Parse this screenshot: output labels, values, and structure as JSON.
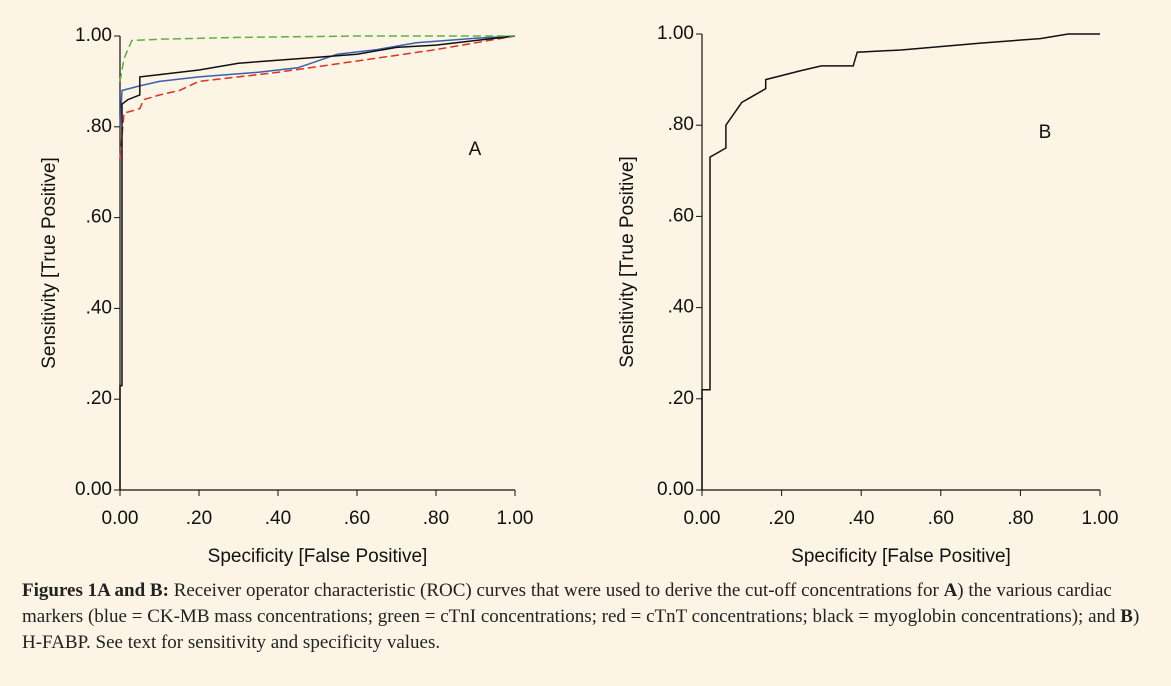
{
  "chart_data": [
    {
      "type": "line",
      "panel_label": "A",
      "xlabel": "Specificity [False Positive]",
      "ylabel": "Sensitivity [True Positive]",
      "xlim": [
        0,
        1
      ],
      "ylim": [
        0,
        1
      ],
      "xticks": [
        {
          "value": 0,
          "label": "0.00"
        },
        {
          "value": 0.2,
          "label": ".20"
        },
        {
          "value": 0.4,
          "label": ".40"
        },
        {
          "value": 0.6,
          "label": ".60"
        },
        {
          "value": 0.8,
          "label": ".80"
        },
        {
          "value": 1,
          "label": "1.00"
        }
      ],
      "yticks": [
        {
          "value": 0,
          "label": "0.00"
        },
        {
          "value": 0.2,
          "label": ".20"
        },
        {
          "value": 0.4,
          "label": ".40"
        },
        {
          "value": 0.6,
          "label": ".60"
        },
        {
          "value": 0.8,
          "label": ".80"
        },
        {
          "value": 1,
          "label": "1.00"
        }
      ],
      "series": [
        {
          "color": "#e03020",
          "dash": true,
          "x": [
            0,
            0.01,
            0.05,
            0.06,
            0.1,
            0.15,
            0.2,
            0.4,
            0.6,
            0.8,
            1
          ],
          "values": [
            0.73,
            0.83,
            0.84,
            0.86,
            0.87,
            0.88,
            0.9,
            0.92,
            0.945,
            0.97,
            1
          ]
        },
        {
          "color": "#3a5fb0",
          "dash": false,
          "x": [
            0,
            0.005,
            0.05,
            0.1,
            0.2,
            0.35,
            0.45,
            0.55,
            0.65,
            0.75,
            0.9,
            1
          ],
          "values": [
            0.8,
            0.88,
            0.89,
            0.9,
            0.91,
            0.92,
            0.93,
            0.96,
            0.97,
            0.985,
            0.995,
            1
          ]
        },
        {
          "color": "#111111",
          "dash": false,
          "x": [
            0,
            0,
            0.005,
            0.005,
            0.02,
            0.05,
            0.05,
            0.1,
            0.2,
            0.3,
            0.45,
            0.6,
            0.7,
            0.8,
            0.9,
            1
          ],
          "values": [
            0,
            0.23,
            0.23,
            0.85,
            0.86,
            0.87,
            0.91,
            0.915,
            0.925,
            0.94,
            0.95,
            0.96,
            0.975,
            0.98,
            0.99,
            1
          ]
        },
        {
          "color": "#5cb040",
          "dash": true,
          "x": [
            0,
            0.01,
            0.02,
            0.03,
            0.1,
            0.3,
            0.6,
            1
          ],
          "values": [
            0.9,
            0.95,
            0.97,
            0.99,
            0.993,
            0.997,
            1,
            1
          ]
        }
      ]
    },
    {
      "type": "line",
      "panel_label": "B",
      "xlabel": "Specificity [False Positive]",
      "ylabel": "Sensitivity [True Positive]",
      "xlim": [
        0,
        1
      ],
      "ylim": [
        0,
        1
      ],
      "xticks": [
        {
          "value": 0,
          "label": "0.00"
        },
        {
          "value": 0.2,
          "label": ".20"
        },
        {
          "value": 0.4,
          "label": ".40"
        },
        {
          "value": 0.6,
          "label": ".60"
        },
        {
          "value": 0.8,
          "label": ".80"
        },
        {
          "value": 1,
          "label": "1.00"
        }
      ],
      "yticks": [
        {
          "value": 0,
          "label": "0.00"
        },
        {
          "value": 0.2,
          "label": ".20"
        },
        {
          "value": 0.4,
          "label": ".40"
        },
        {
          "value": 0.6,
          "label": ".60"
        },
        {
          "value": 0.8,
          "label": ".80"
        },
        {
          "value": 1,
          "label": "1.00"
        }
      ],
      "series": [
        {
          "color": "#111111",
          "dash": false,
          "x": [
            0,
            0,
            0.02,
            0.02,
            0.04,
            0.06,
            0.06,
            0.1,
            0.12,
            0.16,
            0.16,
            0.25,
            0.3,
            0.38,
            0.39,
            0.5,
            0.7,
            0.85,
            0.92,
            1
          ],
          "values": [
            0,
            0.22,
            0.22,
            0.73,
            0.74,
            0.75,
            0.8,
            0.85,
            0.86,
            0.88,
            0.9,
            0.92,
            0.93,
            0.93,
            0.96,
            0.965,
            0.98,
            0.99,
            1,
            1
          ]
        }
      ]
    }
  ],
  "caption": [
    "Figures 1A and B:",
    " Receiver operator characteristic (ROC) curves that were used to derive the cut-off concentrations for ",
    "A",
    ") the various cardiac markers (blue = CK-MB mass concentrations; green = cTnI concentrations; red = cTnT concentrations; black = myoglobin concentrations); and ",
    "B",
    ") H-FABP. See text for sensitivity and specificity values."
  ]
}
